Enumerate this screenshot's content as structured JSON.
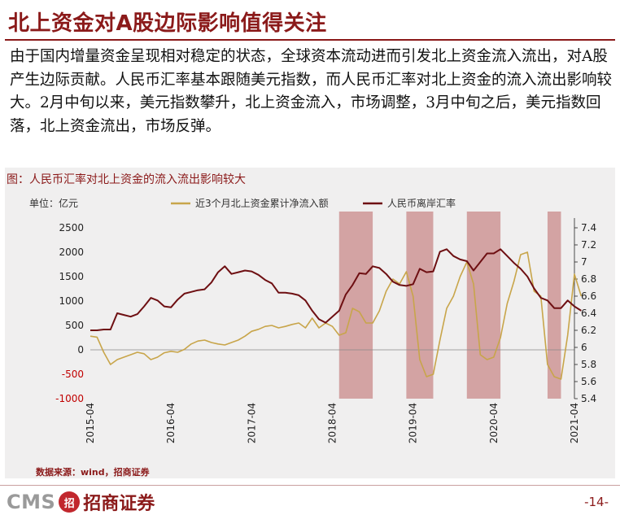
{
  "page": {
    "title": "北上资金对A股边际影响值得关注",
    "paragraph": "由于国内增量资金呈现相对稳定的状态，全球资本流动进而引发北上资金流入流出，对A股产生边际贡献。人民币汇率基本跟随美元指数，而人民币汇率对北上资金的流入流出影响较大。2月中旬以来，美元指数攀升，北上资金流入，市场调整，3月中旬之后，美元指数回落，北上资金流出，市场反弹。",
    "figure_caption": "图：人民币汇率对北上资金的流入流出影响较大",
    "source": "数据来源：wind，招商证券",
    "logo_cms": "CMS",
    "logo_mark": "招",
    "logo_brand": "招商证券",
    "page_number": "-14-"
  },
  "colors": {
    "title": "#8b1a1a",
    "series_flow": "#c8a54a",
    "series_fx": "#6e0f12",
    "shade": "#c98a8a",
    "negative_tick": "#c00000"
  },
  "chart_data": {
    "type": "line",
    "unit_label": "单位：亿元",
    "x_tick_labels": [
      "2015-04",
      "2016-04",
      "2017-04",
      "2018-04",
      "2019-04",
      "2020-04",
      "2021-04"
    ],
    "x_range": [
      "2015-04",
      "2021-04"
    ],
    "left_axis": {
      "range": [
        -1000,
        2500
      ],
      "ticks": [
        -1000,
        -500,
        0,
        500,
        1000,
        1500,
        2000,
        2500
      ]
    },
    "right_axis": {
      "range": [
        5.4,
        7.4
      ],
      "ticks": [
        5.4,
        5.6,
        5.8,
        6,
        6.2,
        6.4,
        6.6,
        6.8,
        7,
        7.2,
        7.4
      ]
    },
    "shaded_periods": [
      [
        "2018-05",
        "2018-10"
      ],
      [
        "2019-03",
        "2019-07"
      ],
      [
        "2019-12",
        "2020-05"
      ],
      [
        "2020-12",
        "2021-02"
      ]
    ],
    "series": [
      {
        "name": "近3个月北上资金累计净流入额",
        "axis": "left",
        "x": [
          "2015-04",
          "2015-05",
          "2015-06",
          "2015-07",
          "2015-08",
          "2015-09",
          "2015-10",
          "2015-11",
          "2015-12",
          "2016-01",
          "2016-02",
          "2016-03",
          "2016-04",
          "2016-05",
          "2016-06",
          "2016-07",
          "2016-08",
          "2016-09",
          "2016-10",
          "2016-11",
          "2016-12",
          "2017-01",
          "2017-02",
          "2017-03",
          "2017-04",
          "2017-05",
          "2017-06",
          "2017-07",
          "2017-08",
          "2017-09",
          "2017-10",
          "2017-11",
          "2017-12",
          "2018-01",
          "2018-02",
          "2018-03",
          "2018-04",
          "2018-05",
          "2018-06",
          "2018-07",
          "2018-08",
          "2018-09",
          "2018-10",
          "2018-11",
          "2018-12",
          "2019-01",
          "2019-02",
          "2019-03",
          "2019-04",
          "2019-05",
          "2019-06",
          "2019-07",
          "2019-08",
          "2019-09",
          "2019-10",
          "2019-11",
          "2019-12",
          "2020-01",
          "2020-02",
          "2020-03",
          "2020-04",
          "2020-05",
          "2020-06",
          "2020-07",
          "2020-08",
          "2020-09",
          "2020-10",
          "2020-11",
          "2020-12",
          "2021-01",
          "2021-02",
          "2021-03",
          "2021-04",
          "2021-05"
        ],
        "values": [
          280,
          260,
          -50,
          -300,
          -200,
          -150,
          -100,
          -50,
          -80,
          -200,
          -150,
          -60,
          -30,
          -50,
          10,
          120,
          180,
          200,
          150,
          120,
          100,
          150,
          200,
          280,
          380,
          420,
          480,
          500,
          450,
          480,
          520,
          550,
          450,
          650,
          450,
          550,
          480,
          300,
          350,
          850,
          780,
          550,
          550,
          800,
          1200,
          1450,
          1350,
          1600,
          1100,
          -200,
          -550,
          -500,
          200,
          850,
          1100,
          1500,
          1800,
          1350,
          -100,
          -200,
          -150,
          250,
          950,
          1400,
          1950,
          2000,
          1200,
          1100,
          -300,
          -550,
          -600,
          300,
          1550,
          1100
        ]
      },
      {
        "name": "人民币离岸汇率",
        "axis": "right",
        "x": [
          "2015-04",
          "2015-05",
          "2015-06",
          "2015-07",
          "2015-08",
          "2015-09",
          "2015-10",
          "2015-11",
          "2015-12",
          "2016-01",
          "2016-02",
          "2016-03",
          "2016-04",
          "2016-05",
          "2016-06",
          "2016-07",
          "2016-08",
          "2016-09",
          "2016-10",
          "2016-11",
          "2016-12",
          "2017-01",
          "2017-02",
          "2017-03",
          "2017-04",
          "2017-05",
          "2017-06",
          "2017-07",
          "2017-08",
          "2017-09",
          "2017-10",
          "2017-11",
          "2017-12",
          "2018-01",
          "2018-02",
          "2018-03",
          "2018-04",
          "2018-05",
          "2018-06",
          "2018-07",
          "2018-08",
          "2018-09",
          "2018-10",
          "2018-11",
          "2018-12",
          "2019-01",
          "2019-02",
          "2019-03",
          "2019-04",
          "2019-05",
          "2019-06",
          "2019-07",
          "2019-08",
          "2019-09",
          "2019-10",
          "2019-11",
          "2019-12",
          "2020-01",
          "2020-02",
          "2020-03",
          "2020-04",
          "2020-05",
          "2020-06",
          "2020-07",
          "2020-08",
          "2020-09",
          "2020-10",
          "2020-11",
          "2020-12",
          "2021-01",
          "2021-02",
          "2021-03",
          "2021-04",
          "2021-05"
        ],
        "values": [
          6.2,
          6.2,
          6.21,
          6.21,
          6.4,
          6.38,
          6.36,
          6.39,
          6.48,
          6.58,
          6.55,
          6.48,
          6.47,
          6.56,
          6.63,
          6.65,
          6.67,
          6.68,
          6.76,
          6.88,
          6.95,
          6.86,
          6.88,
          6.9,
          6.89,
          6.85,
          6.79,
          6.75,
          6.64,
          6.64,
          6.63,
          6.61,
          6.55,
          6.43,
          6.33,
          6.29,
          6.36,
          6.43,
          6.62,
          6.73,
          6.87,
          6.86,
          6.95,
          6.93,
          6.86,
          6.77,
          6.73,
          6.72,
          6.74,
          6.92,
          6.88,
          6.89,
          7.12,
          7.15,
          7.07,
          7.03,
          7.01,
          6.9,
          7.0,
          7.1,
          7.1,
          7.15,
          7.07,
          6.99,
          6.92,
          6.83,
          6.69,
          6.58,
          6.55,
          6.46,
          6.46,
          6.55,
          6.48,
          6.43
        ]
      }
    ]
  }
}
